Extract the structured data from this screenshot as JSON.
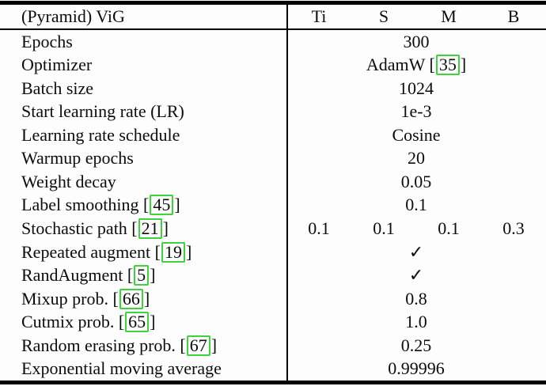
{
  "table": {
    "header": {
      "label": "(Pyramid) ViG",
      "columns": [
        "Ti",
        "S",
        "M",
        "B"
      ]
    },
    "rows": [
      {
        "label": "Epochs",
        "value": "300"
      },
      {
        "label": "Optimizer",
        "value_pre": "AdamW [",
        "value_cite": "35",
        "value_post": "]"
      },
      {
        "label": "Batch size",
        "value": "1024"
      },
      {
        "label": "Start learning rate (LR)",
        "value": "1e-3"
      },
      {
        "label": "Learning rate schedule",
        "value": "Cosine"
      },
      {
        "label": "Warmup epochs",
        "value": "20"
      },
      {
        "label": "Weight decay",
        "value": "0.05"
      },
      {
        "label_pre": "Label smoothing [",
        "cite": "45",
        "label_post": "]",
        "value": "0.1"
      },
      {
        "label_pre": "Stochastic path [",
        "cite": "21",
        "label_post": "]",
        "values": [
          "0.1",
          "0.1",
          "0.1",
          "0.3"
        ]
      },
      {
        "label_pre": "Repeated augment [",
        "cite": "19",
        "label_post": "]",
        "value": "✓"
      },
      {
        "label_pre": "RandAugment [",
        "cite": "5",
        "label_post": "]",
        "value": "✓"
      },
      {
        "label_pre": "Mixup prob. [",
        "cite": "66",
        "label_post": "]",
        "value": "0.8"
      },
      {
        "label_pre": "Cutmix prob. [",
        "cite": "65",
        "label_post": "]",
        "value": "1.0"
      },
      {
        "label_pre": "Random erasing prob. [",
        "cite": "67",
        "label_post": "]",
        "value": "0.25"
      },
      {
        "label": "Exponential moving average",
        "value": "0.99996"
      }
    ],
    "colors": {
      "citation_box": "#3ed23e",
      "rule": "#000000",
      "text": "#0c0c0c",
      "background": "#fdfdfd"
    }
  }
}
